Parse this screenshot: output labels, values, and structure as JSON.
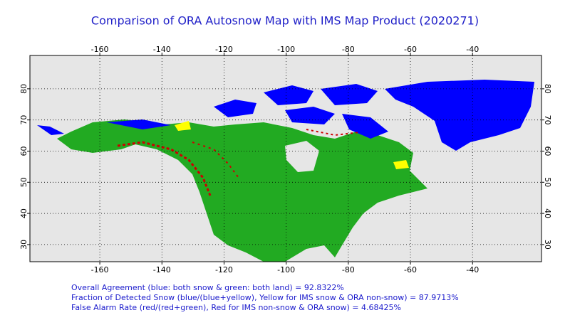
{
  "map": {
    "title": "Comparison of ORA Autosnow Map with IMS Map Product (2020271)",
    "lon_range": [
      -182.5,
      -17.8
    ],
    "lat_range": [
      24.5,
      90.7
    ],
    "lon_ticks": [
      -160,
      -140,
      -120,
      -100,
      -80,
      -60,
      -40
    ],
    "lat_ticks": [
      30,
      40,
      50,
      60,
      70,
      80
    ],
    "stats": [
      "Overall Agreement (blue: both snow & green: both land) =  92.8322%",
      "Fraction of Detected Snow (blue/(blue+yellow), Yellow for IMS snow & ORA non-snow) = 87.9713%",
      "False Alarm Rate (red/(red+green), Red for IMS non-snow & ORA snow)  =  4.68425%"
    ]
  }
}
